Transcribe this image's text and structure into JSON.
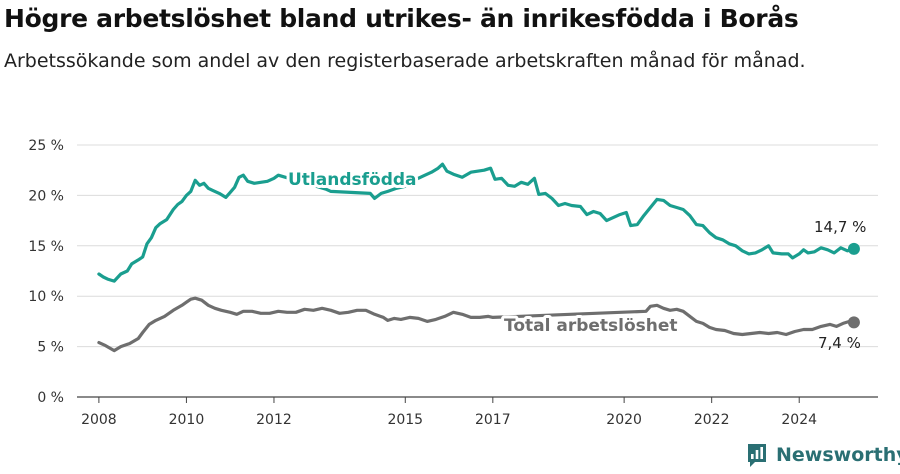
{
  "title": "Högre arbetslöshet bland utrikes- än inrikesfödda i Borås",
  "subtitle": "Arbetssökande som andel av den registerbaserade arbetskraften månad för månad.",
  "brand": {
    "name": "Newsworthy",
    "color": "#2a6f73"
  },
  "chart_data": {
    "type": "line",
    "xlabel": "",
    "ylabel": "",
    "xlim": [
      2007.5,
      2025.8
    ],
    "ylim": [
      0,
      25
    ],
    "x_ticks": [
      2008,
      2010,
      2012,
      2015,
      2017,
      2020,
      2022,
      2024
    ],
    "x_tick_labels": [
      "2008",
      "2010",
      "2012",
      "2015",
      "2017",
      "2020",
      "2022",
      "2024"
    ],
    "y_ticks": [
      0,
      5,
      10,
      15,
      20,
      25
    ],
    "y_tick_labels": [
      "0 %",
      "5 %",
      "10 %",
      "15 %",
      "20 %",
      "25 %"
    ],
    "grid": true,
    "series": [
      {
        "name": "Utlandsfödda",
        "color": "#1a9e8f",
        "end_label": "14,7 %",
        "points": [
          [
            2008.0,
            12.2
          ],
          [
            2008.1,
            11.9
          ],
          [
            2008.2,
            11.7
          ],
          [
            2008.35,
            11.5
          ],
          [
            2008.5,
            12.2
          ],
          [
            2008.65,
            12.5
          ],
          [
            2008.75,
            13.2
          ],
          [
            2008.9,
            13.6
          ],
          [
            2009.0,
            13.9
          ],
          [
            2009.1,
            15.2
          ],
          [
            2009.2,
            15.8
          ],
          [
            2009.3,
            16.8
          ],
          [
            2009.4,
            17.2
          ],
          [
            2009.55,
            17.6
          ],
          [
            2009.7,
            18.6
          ],
          [
            2009.8,
            19.1
          ],
          [
            2009.9,
            19.4
          ],
          [
            2010.0,
            20.0
          ],
          [
            2010.1,
            20.4
          ],
          [
            2010.2,
            21.5
          ],
          [
            2010.3,
            21.0
          ],
          [
            2010.4,
            21.2
          ],
          [
            2010.5,
            20.7
          ],
          [
            2010.6,
            20.5
          ],
          [
            2010.75,
            20.2
          ],
          [
            2010.9,
            19.8
          ],
          [
            2011.0,
            20.3
          ],
          [
            2011.1,
            20.8
          ],
          [
            2011.2,
            21.8
          ],
          [
            2011.3,
            22.0
          ],
          [
            2011.4,
            21.4
          ],
          [
            2011.55,
            21.2
          ],
          [
            2011.7,
            21.3
          ],
          [
            2011.85,
            21.4
          ],
          [
            2012.0,
            21.7
          ],
          [
            2012.1,
            22.0
          ],
          [
            2013.2,
            20.6
          ],
          [
            2013.3,
            20.4
          ],
          [
            2014.2,
            20.2
          ],
          [
            2014.3,
            19.7
          ],
          [
            2014.45,
            20.2
          ],
          [
            2014.6,
            20.4
          ],
          [
            2014.8,
            20.7
          ],
          [
            2015.0,
            20.9
          ],
          [
            2015.2,
            21.5
          ],
          [
            2015.4,
            21.9
          ],
          [
            2015.6,
            22.3
          ],
          [
            2015.75,
            22.7
          ],
          [
            2015.85,
            23.1
          ],
          [
            2015.95,
            22.4
          ],
          [
            2016.1,
            22.1
          ],
          [
            2016.3,
            21.8
          ],
          [
            2016.5,
            22.3
          ],
          [
            2016.65,
            22.4
          ],
          [
            2016.8,
            22.5
          ],
          [
            2016.95,
            22.7
          ],
          [
            2017.05,
            21.6
          ],
          [
            2017.2,
            21.7
          ],
          [
            2017.35,
            21.0
          ],
          [
            2017.5,
            20.9
          ],
          [
            2017.65,
            21.3
          ],
          [
            2017.8,
            21.1
          ],
          [
            2017.95,
            21.7
          ],
          [
            2018.05,
            20.1
          ],
          [
            2018.2,
            20.2
          ],
          [
            2018.35,
            19.7
          ],
          [
            2018.5,
            19.0
          ],
          [
            2018.65,
            19.2
          ],
          [
            2018.8,
            19.0
          ],
          [
            2019.0,
            18.9
          ],
          [
            2019.15,
            18.1
          ],
          [
            2019.3,
            18.4
          ],
          [
            2019.45,
            18.2
          ],
          [
            2019.6,
            17.5
          ],
          [
            2019.75,
            17.8
          ],
          [
            2019.9,
            18.1
          ],
          [
            2020.05,
            18.3
          ],
          [
            2020.15,
            17.0
          ],
          [
            2020.3,
            17.1
          ],
          [
            2020.45,
            18.0
          ],
          [
            2020.6,
            18.8
          ],
          [
            2020.75,
            19.6
          ],
          [
            2020.9,
            19.5
          ],
          [
            2021.05,
            19.0
          ],
          [
            2021.2,
            18.8
          ],
          [
            2021.35,
            18.6
          ],
          [
            2021.5,
            18.0
          ],
          [
            2021.65,
            17.1
          ],
          [
            2021.8,
            17.0
          ],
          [
            2021.95,
            16.3
          ],
          [
            2022.1,
            15.8
          ],
          [
            2022.25,
            15.6
          ],
          [
            2022.4,
            15.2
          ],
          [
            2022.55,
            15.0
          ],
          [
            2022.7,
            14.5
          ],
          [
            2022.85,
            14.2
          ],
          [
            2023.0,
            14.3
          ],
          [
            2023.15,
            14.6
          ],
          [
            2023.3,
            15.0
          ],
          [
            2023.4,
            14.3
          ],
          [
            2023.6,
            14.2
          ],
          [
            2023.75,
            14.2
          ],
          [
            2023.85,
            13.8
          ],
          [
            2024.0,
            14.2
          ],
          [
            2024.1,
            14.6
          ],
          [
            2024.2,
            14.3
          ],
          [
            2024.35,
            14.4
          ],
          [
            2024.5,
            14.8
          ],
          [
            2024.65,
            14.6
          ],
          [
            2024.8,
            14.3
          ],
          [
            2024.95,
            14.8
          ],
          [
            2025.1,
            14.5
          ],
          [
            2025.25,
            14.7
          ]
        ]
      },
      {
        "name": "Total arbetslöshet",
        "color": "#6e6e6e",
        "end_label": "7,4 %",
        "points": [
          [
            2008.0,
            5.4
          ],
          [
            2008.15,
            5.1
          ],
          [
            2008.35,
            4.6
          ],
          [
            2008.5,
            5.0
          ],
          [
            2008.7,
            5.3
          ],
          [
            2008.9,
            5.8
          ],
          [
            2009.0,
            6.4
          ],
          [
            2009.15,
            7.2
          ],
          [
            2009.3,
            7.6
          ],
          [
            2009.5,
            8.0
          ],
          [
            2009.7,
            8.6
          ],
          [
            2009.9,
            9.1
          ],
          [
            2010.0,
            9.4
          ],
          [
            2010.1,
            9.7
          ],
          [
            2010.2,
            9.8
          ],
          [
            2010.35,
            9.6
          ],
          [
            2010.5,
            9.1
          ],
          [
            2010.65,
            8.8
          ],
          [
            2010.8,
            8.6
          ],
          [
            2011.0,
            8.4
          ],
          [
            2011.15,
            8.2
          ],
          [
            2011.3,
            8.5
          ],
          [
            2011.5,
            8.5
          ],
          [
            2011.7,
            8.3
          ],
          [
            2011.9,
            8.3
          ],
          [
            2012.1,
            8.5
          ],
          [
            2012.3,
            8.4
          ],
          [
            2012.5,
            8.4
          ],
          [
            2012.7,
            8.7
          ],
          [
            2012.9,
            8.6
          ],
          [
            2013.1,
            8.8
          ],
          [
            2013.3,
            8.6
          ],
          [
            2013.5,
            8.3
          ],
          [
            2013.7,
            8.4
          ],
          [
            2013.9,
            8.6
          ],
          [
            2014.1,
            8.6
          ],
          [
            2014.3,
            8.2
          ],
          [
            2014.5,
            7.9
          ],
          [
            2014.6,
            7.6
          ],
          [
            2014.75,
            7.8
          ],
          [
            2014.9,
            7.7
          ],
          [
            2015.1,
            7.9
          ],
          [
            2015.3,
            7.8
          ],
          [
            2015.5,
            7.5
          ],
          [
            2015.7,
            7.7
          ],
          [
            2015.9,
            8.0
          ],
          [
            2016.1,
            8.4
          ],
          [
            2016.3,
            8.2
          ],
          [
            2016.5,
            7.9
          ],
          [
            2016.7,
            7.9
          ],
          [
            2016.9,
            8.0
          ],
          [
            2017.0,
            7.9
          ],
          [
            2020.5,
            8.5
          ],
          [
            2020.6,
            9.0
          ],
          [
            2020.75,
            9.1
          ],
          [
            2020.9,
            8.8
          ],
          [
            2021.05,
            8.6
          ],
          [
            2021.2,
            8.7
          ],
          [
            2021.35,
            8.5
          ],
          [
            2021.65,
            7.5
          ],
          [
            2021.8,
            7.3
          ],
          [
            2021.95,
            6.9
          ],
          [
            2022.1,
            6.7
          ],
          [
            2022.3,
            6.6
          ],
          [
            2022.5,
            6.3
          ],
          [
            2022.7,
            6.2
          ],
          [
            2022.9,
            6.3
          ],
          [
            2023.1,
            6.4
          ],
          [
            2023.3,
            6.3
          ],
          [
            2023.5,
            6.4
          ],
          [
            2023.7,
            6.2
          ],
          [
            2023.9,
            6.5
          ],
          [
            2024.1,
            6.7
          ],
          [
            2024.3,
            6.7
          ],
          [
            2024.5,
            7.0
          ],
          [
            2024.7,
            7.2
          ],
          [
            2024.85,
            7.0
          ],
          [
            2025.0,
            7.3
          ],
          [
            2025.15,
            7.5
          ],
          [
            2025.25,
            7.4
          ]
        ]
      }
    ]
  }
}
